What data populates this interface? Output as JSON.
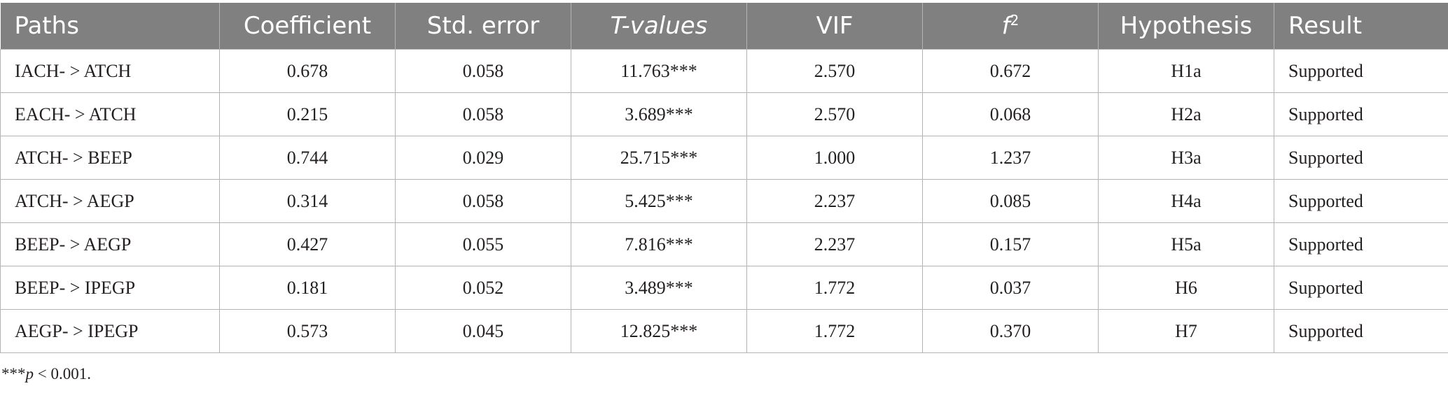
{
  "table": {
    "headers": [
      "Paths",
      "Coefficient",
      "Std. error",
      "T-values",
      "VIF",
      "f2",
      "Hypothesis",
      "Result"
    ],
    "f2_base": "f",
    "f2_sup": "2",
    "rows": [
      [
        "IACH- > ATCH",
        "0.678",
        "0.058",
        "11.763***",
        "2.570",
        "0.672",
        "H1a",
        "Supported"
      ],
      [
        "EACH- > ATCH",
        "0.215",
        "0.058",
        "3.689***",
        "2.570",
        "0.068",
        "H2a",
        "Supported"
      ],
      [
        "ATCH- > BEEP",
        "0.744",
        "0.029",
        "25.715***",
        "1.000",
        "1.237",
        "H3a",
        "Supported"
      ],
      [
        "ATCH- > AEGP",
        "0.314",
        "0.058",
        "5.425***",
        "2.237",
        "0.085",
        "H4a",
        "Supported"
      ],
      [
        "BEEP- > AEGP",
        "0.427",
        "0.055",
        "7.816***",
        "2.237",
        "0.157",
        "H5a",
        "Supported"
      ],
      [
        "BEEP- > IPEGP",
        "0.181",
        "0.052",
        "3.489***",
        "1.772",
        "0.037",
        "H6",
        "Supported"
      ],
      [
        "AEGP- > IPEGP",
        "0.573",
        "0.045",
        "12.825***",
        "1.772",
        "0.370",
        "H7",
        "Supported"
      ]
    ]
  },
  "footnote": {
    "stars": "***",
    "p": "p",
    "rest": " < 0.001."
  }
}
